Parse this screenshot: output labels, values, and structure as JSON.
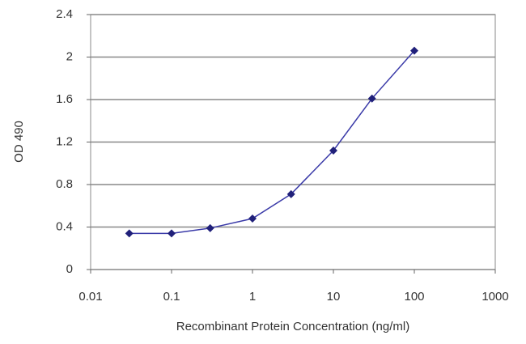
{
  "chart_data": {
    "type": "line",
    "x_label": "Recombinant Protein Concentration (ng/ml)",
    "y_label": "OD 490",
    "x": [
      0.03,
      0.1,
      0.3,
      1,
      3,
      10,
      30,
      100
    ],
    "series": [
      {
        "color": "#3a3aa8",
        "marker_color": "#20207a",
        "values": [
          0.34,
          0.34,
          0.39,
          0.48,
          0.71,
          1.12,
          1.61,
          2.06
        ]
      }
    ],
    "xlim": [
      0.01,
      1000
    ],
    "xticks": [
      0.01,
      0.1,
      1,
      10,
      100,
      1000
    ],
    "x_scale": "log",
    "ylim": [
      0,
      2.4
    ],
    "yticks": [
      0,
      0.4,
      0.8,
      1.2,
      1.6,
      2,
      2.4
    ],
    "grid": true
  }
}
